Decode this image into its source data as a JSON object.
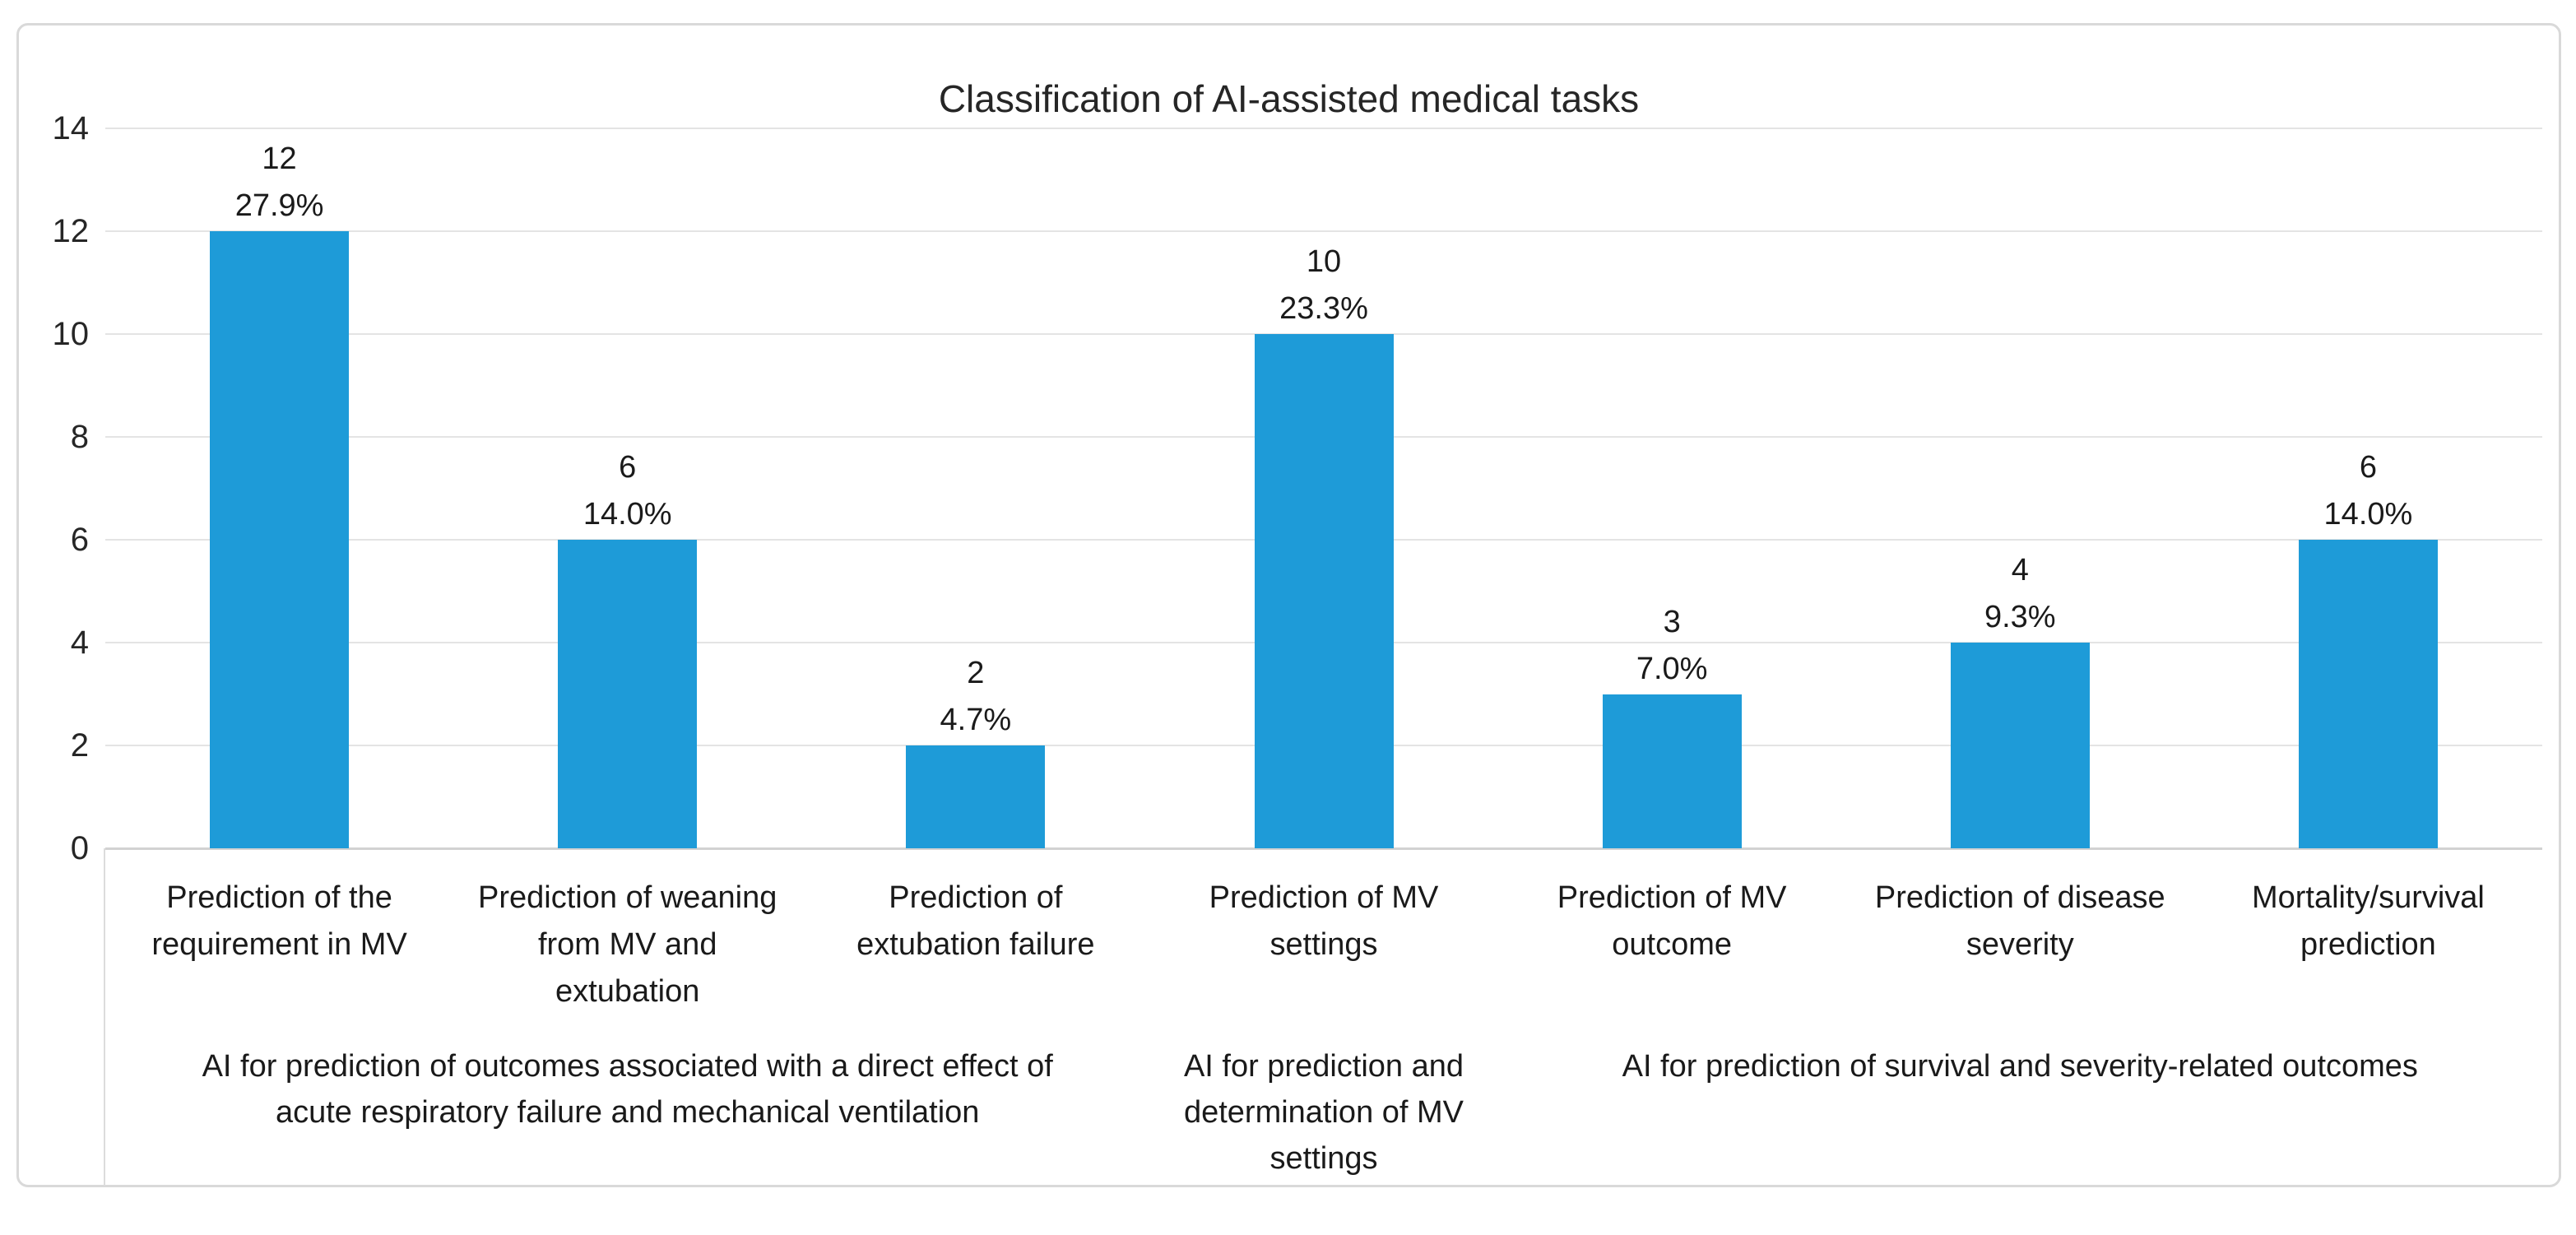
{
  "chart": {
    "title": "Classification of AI-assisted medical tasks"
  },
  "colors": {
    "bar": "#1E9BD8",
    "frame_border": "#D9D9D9",
    "gridline": "#E4E4E4",
    "axis_line": "#D2D2D2",
    "text": "#262626"
  },
  "chart_data": {
    "type": "bar",
    "title": "Classification of AI-assisted medical tasks",
    "categories": [
      "Prediction of the\nrequirement in MV",
      "Prediction of weaning\nfrom MV and\nextubation",
      "Prediction of\nextubation failure",
      "Prediction of MV\nsettings",
      "Prediction of MV\noutcome",
      "Prediction of disease\nseverity",
      "Mortality/survival\nprediction"
    ],
    "values": [
      12,
      6,
      2,
      10,
      3,
      4,
      6
    ],
    "count_labels": [
      "12",
      "6",
      "2",
      "10",
      "3",
      "4",
      "6"
    ],
    "percent_labels": [
      "27.9%",
      "14.0%",
      "4.7%",
      "23.3%",
      "7.0%",
      "9.3%",
      "14.0%"
    ],
    "groups": [
      {
        "label": "AI for prediction of outcomes associated with a direct effect of\nacute respiratory failure and mechanical ventilation",
        "start": 0,
        "span": 3
      },
      {
        "label": "AI for prediction and\ndetermination of MV\nsettings",
        "start": 3,
        "span": 1
      },
      {
        "label": "AI for prediction of survival and severity-related outcomes",
        "start": 4,
        "span": 3
      }
    ],
    "xlabel": "",
    "ylabel": "",
    "ylim": [
      0,
      14
    ],
    "yticks": [
      0,
      2,
      4,
      6,
      8,
      10,
      12,
      14
    ],
    "grid": true,
    "legend": "none",
    "bar_color": "#1E9BD8"
  }
}
